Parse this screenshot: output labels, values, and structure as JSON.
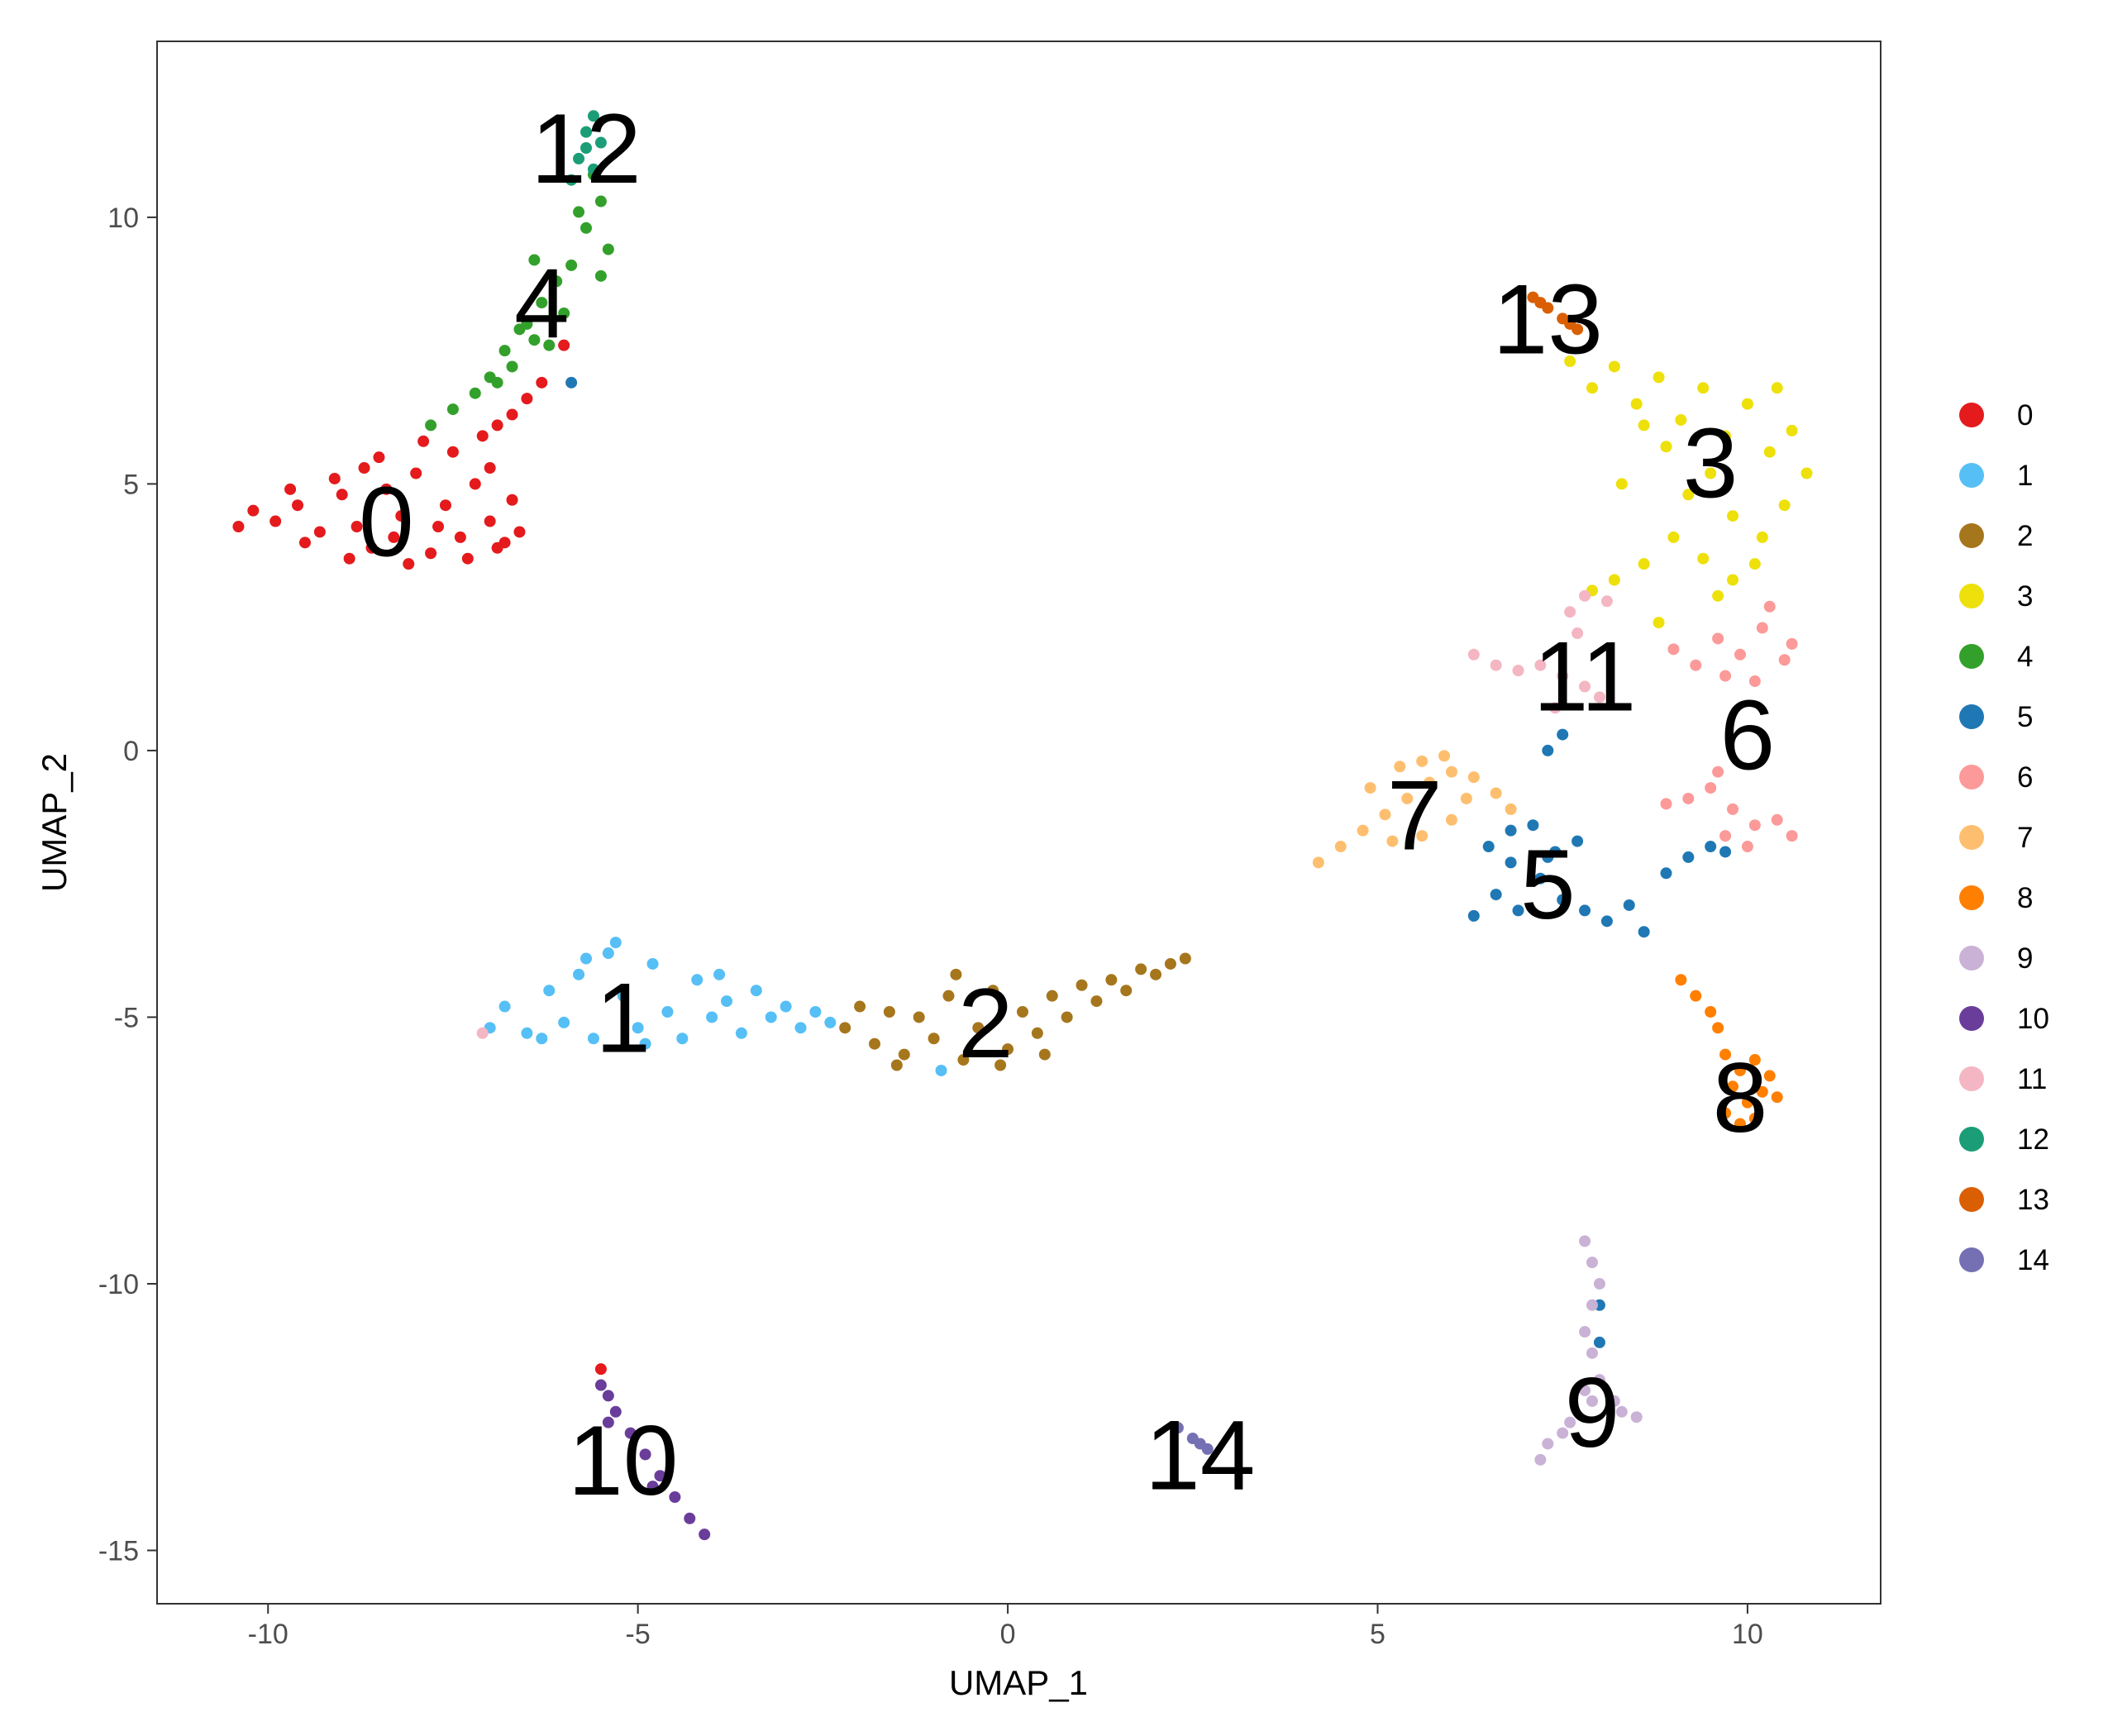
{
  "chart_data": {
    "type": "scatter",
    "title": "",
    "xlabel": "UMAP_1",
    "ylabel": "UMAP_2",
    "xlim": [
      -11.5,
      11.8
    ],
    "ylim": [
      -16,
      13.3
    ],
    "xticks": [
      -10,
      -5,
      0,
      5,
      10
    ],
    "xtick_labels": [
      "-10",
      "-5",
      "0",
      "5",
      "10"
    ],
    "yticks": [
      -15,
      -10,
      -5,
      0,
      5,
      10
    ],
    "ytick_labels": [
      "-15",
      "-10",
      "-5",
      "0",
      "5",
      "10"
    ],
    "grid": false,
    "legend_position": "right",
    "series": [
      {
        "name": "0",
        "color": "#E41A1C",
        "label_pos": [
          -8.4,
          4.3
        ],
        "points": [
          [
            -10.2,
            4.5
          ],
          [
            -9.9,
            4.3
          ],
          [
            -9.6,
            4.6
          ],
          [
            -9.3,
            4.1
          ],
          [
            -9.0,
            4.8
          ],
          [
            -8.8,
            4.2
          ],
          [
            -8.6,
            3.8
          ],
          [
            -8.4,
            4.9
          ],
          [
            -8.2,
            4.4
          ],
          [
            -8.0,
            5.2
          ],
          [
            -7.8,
            3.7
          ],
          [
            -7.6,
            4.6
          ],
          [
            -7.4,
            4.0
          ],
          [
            -7.2,
            5.0
          ],
          [
            -7.0,
            4.3
          ],
          [
            -6.8,
            3.9
          ],
          [
            -6.7,
            4.7
          ],
          [
            -9.5,
            3.9
          ],
          [
            -9.1,
            5.1
          ],
          [
            -8.5,
            5.5
          ],
          [
            -7.9,
            5.8
          ],
          [
            -7.5,
            5.6
          ],
          [
            -7.1,
            5.9
          ],
          [
            -6.9,
            6.1
          ],
          [
            -6.7,
            6.3
          ],
          [
            -6.5,
            6.6
          ],
          [
            -6.3,
            6.9
          ],
          [
            -6.0,
            7.6
          ],
          [
            -10.4,
            4.2
          ],
          [
            -8.9,
            3.6
          ],
          [
            -8.1,
            3.5
          ],
          [
            -7.3,
            3.6
          ],
          [
            -6.9,
            3.8
          ],
          [
            -9.7,
            4.9
          ],
          [
            -8.7,
            5.3
          ],
          [
            -8.3,
            4.0
          ],
          [
            -7.7,
            4.2
          ],
          [
            -7.0,
            5.3
          ],
          [
            -6.6,
            4.1
          ],
          [
            -5.5,
            -11.6
          ]
        ]
      },
      {
        "name": "1",
        "color": "#56BFF5",
        "label_pos": [
          -5.2,
          -5.0
        ],
        "points": [
          [
            -7.0,
            -5.2
          ],
          [
            -6.8,
            -4.8
          ],
          [
            -6.5,
            -5.3
          ],
          [
            -6.2,
            -4.5
          ],
          [
            -6.0,
            -5.1
          ],
          [
            -5.8,
            -4.2
          ],
          [
            -5.6,
            -5.4
          ],
          [
            -5.4,
            -3.8
          ],
          [
            -5.2,
            -4.6
          ],
          [
            -5.0,
            -5.2
          ],
          [
            -4.8,
            -4.0
          ],
          [
            -4.6,
            -4.9
          ],
          [
            -4.4,
            -5.4
          ],
          [
            -4.2,
            -4.3
          ],
          [
            -4.0,
            -5.0
          ],
          [
            -3.8,
            -4.7
          ],
          [
            -3.6,
            -5.3
          ],
          [
            -3.4,
            -4.5
          ],
          [
            -3.2,
            -5.0
          ],
          [
            -3.0,
            -4.8
          ],
          [
            -2.8,
            -5.2
          ],
          [
            -2.6,
            -4.9
          ],
          [
            -2.4,
            -5.1
          ],
          [
            -5.3,
            -3.6
          ],
          [
            -5.7,
            -3.9
          ],
          [
            -6.3,
            -5.4
          ],
          [
            -4.9,
            -5.5
          ],
          [
            -3.9,
            -4.2
          ],
          [
            -0.9,
            -6.0
          ]
        ]
      },
      {
        "name": "2",
        "color": "#A6761D",
        "label_pos": [
          -0.3,
          -5.1
        ],
        "points": [
          [
            -2.2,
            -5.2
          ],
          [
            -2.0,
            -4.8
          ],
          [
            -1.8,
            -5.5
          ],
          [
            -1.6,
            -4.9
          ],
          [
            -1.4,
            -5.7
          ],
          [
            -1.2,
            -5.0
          ],
          [
            -1.0,
            -5.4
          ],
          [
            -0.8,
            -4.6
          ],
          [
            -0.6,
            -5.8
          ],
          [
            -0.4,
            -5.2
          ],
          [
            -0.2,
            -4.5
          ],
          [
            0.0,
            -5.6
          ],
          [
            0.2,
            -4.9
          ],
          [
            0.4,
            -5.3
          ],
          [
            0.6,
            -4.6
          ],
          [
            0.8,
            -5.0
          ],
          [
            1.0,
            -4.4
          ],
          [
            1.2,
            -4.7
          ],
          [
            1.4,
            -4.3
          ],
          [
            1.6,
            -4.5
          ],
          [
            1.8,
            -4.1
          ],
          [
            2.0,
            -4.2
          ],
          [
            2.2,
            -4.0
          ],
          [
            2.4,
            -3.9
          ],
          [
            -0.7,
            -4.2
          ],
          [
            -0.1,
            -5.9
          ],
          [
            0.5,
            -5.7
          ],
          [
            -1.5,
            -5.9
          ]
        ]
      },
      {
        "name": "3",
        "color": "#EEE00A",
        "label_pos": [
          9.5,
          5.4
        ],
        "points": [
          [
            7.6,
            7.3
          ],
          [
            7.9,
            6.8
          ],
          [
            8.2,
            7.2
          ],
          [
            8.5,
            6.5
          ],
          [
            8.8,
            7.0
          ],
          [
            9.1,
            6.2
          ],
          [
            9.4,
            6.8
          ],
          [
            9.7,
            5.9
          ],
          [
            10.0,
            6.5
          ],
          [
            10.3,
            5.6
          ],
          [
            10.6,
            6.0
          ],
          [
            10.8,
            5.2
          ],
          [
            10.5,
            4.6
          ],
          [
            10.2,
            4.0
          ],
          [
            9.8,
            4.4
          ],
          [
            9.5,
            5.2
          ],
          [
            9.2,
            4.8
          ],
          [
            8.9,
            5.7
          ],
          [
            8.6,
            6.1
          ],
          [
            9.0,
            4.0
          ],
          [
            9.4,
            3.6
          ],
          [
            9.8,
            3.2
          ],
          [
            10.1,
            3.5
          ],
          [
            8.6,
            3.5
          ],
          [
            8.2,
            3.2
          ],
          [
            7.9,
            3.0
          ],
          [
            8.8,
            2.4
          ],
          [
            9.6,
            2.9
          ],
          [
            8.3,
            5.0
          ],
          [
            10.4,
            6.8
          ]
        ]
      },
      {
        "name": "4",
        "color": "#33A02C",
        "label_pos": [
          -6.3,
          8.4
        ],
        "points": [
          [
            -5.6,
            10.8
          ],
          [
            -5.5,
            10.3
          ],
          [
            -5.7,
            9.8
          ],
          [
            -5.4,
            9.4
          ],
          [
            -5.9,
            9.1
          ],
          [
            -6.1,
            8.8
          ],
          [
            -6.3,
            8.4
          ],
          [
            -6.5,
            8.0
          ],
          [
            -6.4,
            7.7
          ],
          [
            -6.8,
            7.5
          ],
          [
            -6.7,
            7.2
          ],
          [
            -7.0,
            7.0
          ],
          [
            -7.2,
            6.7
          ],
          [
            -7.5,
            6.4
          ],
          [
            -7.8,
            6.1
          ],
          [
            -5.8,
            10.1
          ],
          [
            -6.0,
            8.2
          ],
          [
            -6.2,
            7.6
          ],
          [
            -6.6,
            7.9
          ],
          [
            -6.9,
            6.9
          ],
          [
            -5.5,
            8.9
          ],
          [
            -6.4,
            9.2
          ]
        ]
      },
      {
        "name": "5",
        "color": "#1F78B4",
        "label_pos": [
          7.3,
          -2.5
        ],
        "points": [
          [
            6.3,
            -3.1
          ],
          [
            6.6,
            -2.7
          ],
          [
            6.9,
            -3.0
          ],
          [
            7.2,
            -2.4
          ],
          [
            7.5,
            -2.8
          ],
          [
            7.8,
            -3.0
          ],
          [
            8.1,
            -3.2
          ],
          [
            8.4,
            -2.9
          ],
          [
            8.6,
            -3.4
          ],
          [
            6.5,
            -1.8
          ],
          [
            6.8,
            -1.5
          ],
          [
            7.1,
            -1.4
          ],
          [
            7.4,
            -1.9
          ],
          [
            7.7,
            -1.7
          ],
          [
            6.8,
            -2.1
          ],
          [
            7.3,
            -2.0
          ],
          [
            8.9,
            -2.3
          ],
          [
            9.2,
            -2.0
          ],
          [
            9.5,
            -1.8
          ],
          [
            9.7,
            -1.9
          ],
          [
            7.5,
            0.3
          ],
          [
            7.3,
            0.0
          ],
          [
            8.0,
            -10.4
          ],
          [
            8.0,
            -11.1
          ],
          [
            -5.9,
            6.9
          ]
        ]
      },
      {
        "name": "6",
        "color": "#FB9A99",
        "label_pos": [
          10.0,
          0.3
        ],
        "points": [
          [
            9.0,
            1.9
          ],
          [
            9.3,
            1.6
          ],
          [
            9.6,
            2.1
          ],
          [
            9.9,
            1.8
          ],
          [
            10.2,
            2.3
          ],
          [
            10.5,
            1.7
          ],
          [
            10.1,
            1.3
          ],
          [
            9.7,
            1.4
          ],
          [
            10.3,
            2.7
          ],
          [
            10.6,
            2.0
          ],
          [
            9.2,
            -0.9
          ],
          [
            9.5,
            -0.7
          ],
          [
            9.8,
            -1.1
          ],
          [
            10.1,
            -1.4
          ],
          [
            10.4,
            -1.3
          ],
          [
            10.6,
            -1.6
          ],
          [
            9.7,
            -1.6
          ],
          [
            10.0,
            -1.8
          ],
          [
            8.9,
            -1.0
          ],
          [
            9.6,
            -0.4
          ]
        ]
      },
      {
        "name": "7",
        "color": "#FDBF6F",
        "label_pos": [
          5.5,
          -1.2
        ],
        "points": [
          [
            4.2,
            -2.1
          ],
          [
            4.5,
            -1.8
          ],
          [
            4.8,
            -1.5
          ],
          [
            5.1,
            -1.2
          ],
          [
            5.4,
            -0.9
          ],
          [
            5.7,
            -0.6
          ],
          [
            6.0,
            -0.4
          ],
          [
            6.3,
            -0.5
          ],
          [
            6.6,
            -0.8
          ],
          [
            6.8,
            -1.1
          ],
          [
            5.3,
            -0.3
          ],
          [
            5.6,
            -0.2
          ],
          [
            5.9,
            -0.1
          ],
          [
            5.2,
            -1.7
          ],
          [
            5.6,
            -1.6
          ],
          [
            6.0,
            -1.3
          ],
          [
            4.9,
            -0.7
          ],
          [
            6.2,
            -0.9
          ]
        ]
      },
      {
        "name": "8",
        "color": "#FF7F00",
        "label_pos": [
          9.9,
          -6.5
        ],
        "points": [
          [
            9.7,
            -5.7
          ],
          [
            9.9,
            -6.0
          ],
          [
            10.1,
            -5.8
          ],
          [
            9.8,
            -6.3
          ],
          [
            10.0,
            -6.6
          ],
          [
            10.2,
            -6.4
          ],
          [
            10.3,
            -6.1
          ],
          [
            9.7,
            -6.8
          ],
          [
            9.9,
            -7.0
          ],
          [
            10.1,
            -6.9
          ],
          [
            9.5,
            -4.9
          ],
          [
            9.3,
            -4.6
          ],
          [
            9.1,
            -4.3
          ],
          [
            9.6,
            -5.2
          ],
          [
            10.4,
            -6.5
          ]
        ]
      },
      {
        "name": "9",
        "color": "#CAB2D6",
        "label_pos": [
          7.9,
          -12.4
        ],
        "points": [
          [
            7.8,
            -9.2
          ],
          [
            7.9,
            -9.6
          ],
          [
            8.0,
            -10.0
          ],
          [
            7.9,
            -10.4
          ],
          [
            7.8,
            -10.9
          ],
          [
            7.9,
            -11.3
          ],
          [
            8.0,
            -11.8
          ],
          [
            7.9,
            -12.2
          ],
          [
            7.6,
            -12.6
          ],
          [
            7.3,
            -13.0
          ],
          [
            7.2,
            -13.3
          ],
          [
            8.2,
            -12.2
          ],
          [
            8.5,
            -12.5
          ],
          [
            8.3,
            -12.4
          ],
          [
            7.8,
            -12.0
          ],
          [
            7.5,
            -12.8
          ]
        ]
      },
      {
        "name": "10",
        "color": "#6A3D9A",
        "label_pos": [
          -5.2,
          -13.3
        ],
        "points": [
          [
            -5.5,
            -11.9
          ],
          [
            -5.4,
            -12.1
          ],
          [
            -5.3,
            -12.4
          ],
          [
            -5.1,
            -12.8
          ],
          [
            -4.9,
            -13.2
          ],
          [
            -4.7,
            -13.6
          ],
          [
            -4.5,
            -14.0
          ],
          [
            -4.3,
            -14.4
          ],
          [
            -4.1,
            -14.7
          ],
          [
            -5.4,
            -12.6
          ],
          [
            -4.8,
            -13.8
          ]
        ]
      },
      {
        "name": "11",
        "color": "#F4B6C2",
        "label_pos": [
          7.8,
          1.4
        ],
        "points": [
          [
            6.3,
            1.8
          ],
          [
            6.6,
            1.6
          ],
          [
            6.9,
            1.5
          ],
          [
            7.2,
            1.6
          ],
          [
            7.5,
            1.4
          ],
          [
            7.8,
            1.2
          ],
          [
            8.0,
            1.0
          ],
          [
            7.7,
            2.2
          ],
          [
            7.6,
            2.6
          ],
          [
            7.8,
            2.9
          ],
          [
            8.1,
            2.8
          ],
          [
            7.4,
            0.8
          ],
          [
            -7.1,
            -5.3
          ]
        ]
      },
      {
        "name": "12",
        "color": "#1B9E77",
        "label_pos": [
          -5.7,
          11.3
        ],
        "points": [
          [
            -5.6,
            11.9
          ],
          [
            -5.7,
            11.6
          ],
          [
            -5.5,
            11.4
          ],
          [
            -5.8,
            11.1
          ],
          [
            -5.6,
            10.9
          ],
          [
            -5.9,
            10.7
          ],
          [
            -5.7,
            11.3
          ]
        ]
      },
      {
        "name": "13",
        "color": "#D95F02",
        "label_pos": [
          7.3,
          8.1
        ],
        "points": [
          [
            7.1,
            8.5
          ],
          [
            7.3,
            8.3
          ],
          [
            7.5,
            8.1
          ],
          [
            7.7,
            7.9
          ],
          [
            7.2,
            8.4
          ],
          [
            7.6,
            8.0
          ]
        ]
      },
      {
        "name": "14",
        "color": "#7570B3",
        "label_pos": [
          2.6,
          -13.2
        ],
        "points": [
          [
            2.3,
            -12.7
          ],
          [
            2.5,
            -12.9
          ],
          [
            2.7,
            -13.1
          ],
          [
            2.6,
            -13.0
          ]
        ]
      }
    ]
  }
}
